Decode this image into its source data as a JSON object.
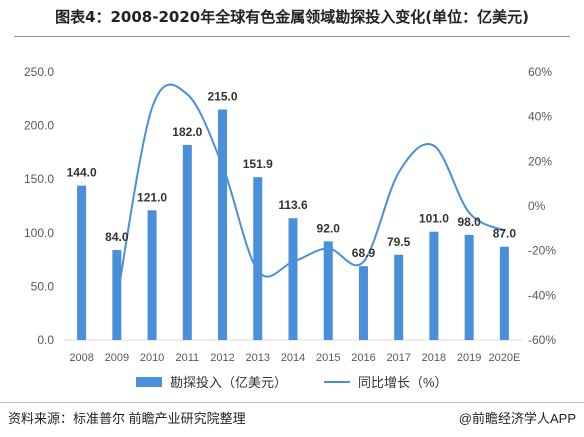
{
  "header": {
    "title": "图表4：2008-2020年全球有色金属领域勘探投入变化(单位：亿美元)"
  },
  "chart_data": {
    "type": "bar",
    "title": "图表4：2008-2020年全球有色金属领域勘探投入变化(单位：亿美元)",
    "categories": [
      "2008",
      "2009",
      "2010",
      "2011",
      "2012",
      "2013",
      "2014",
      "2015",
      "2016",
      "2017",
      "2018",
      "2019",
      "2020E"
    ],
    "series": [
      {
        "name": "勘探投入（亿美元）",
        "type": "bar",
        "axis": "left",
        "values": [
          144.0,
          84.0,
          121.0,
          182.0,
          215.0,
          151.9,
          113.6,
          92.0,
          68.9,
          79.5,
          101.0,
          98.0,
          87.0
        ],
        "labels": [
          "144.0",
          "84.0",
          "121.0",
          "182.0",
          "215.0",
          "151.9",
          "113.6",
          "92.0",
          "68.9",
          "79.5",
          "101.0",
          "98.0",
          "87.0"
        ]
      },
      {
        "name": "同比增长（%）",
        "type": "line",
        "axis": "right",
        "values": [
          null,
          -42,
          44,
          50,
          18,
          -29,
          -25,
          -19,
          -25,
          15,
          27,
          -3,
          -11
        ]
      }
    ],
    "y_left": {
      "ylim": [
        0,
        250
      ],
      "ticks": [
        "0.0",
        "50.0",
        "100.0",
        "150.0",
        "200.0",
        "250.0"
      ]
    },
    "y_right": {
      "ylim": [
        -60,
        60
      ],
      "ticks": [
        "-60%",
        "-40%",
        "-20%",
        "0%",
        "20%",
        "40%",
        "60%"
      ]
    },
    "grid": false,
    "legend": "bottom",
    "colors": {
      "bar": "#4a8fd9",
      "line": "#4a8fd9",
      "axis_text": "#595959"
    }
  },
  "legend": {
    "bar_label": "勘探投入（亿美元）",
    "line_label": "同比增长（%）"
  },
  "footer": {
    "source": "资料来源：标准普尔 前瞻产业研究院整理",
    "brand": "@前瞻经济学人APP"
  }
}
